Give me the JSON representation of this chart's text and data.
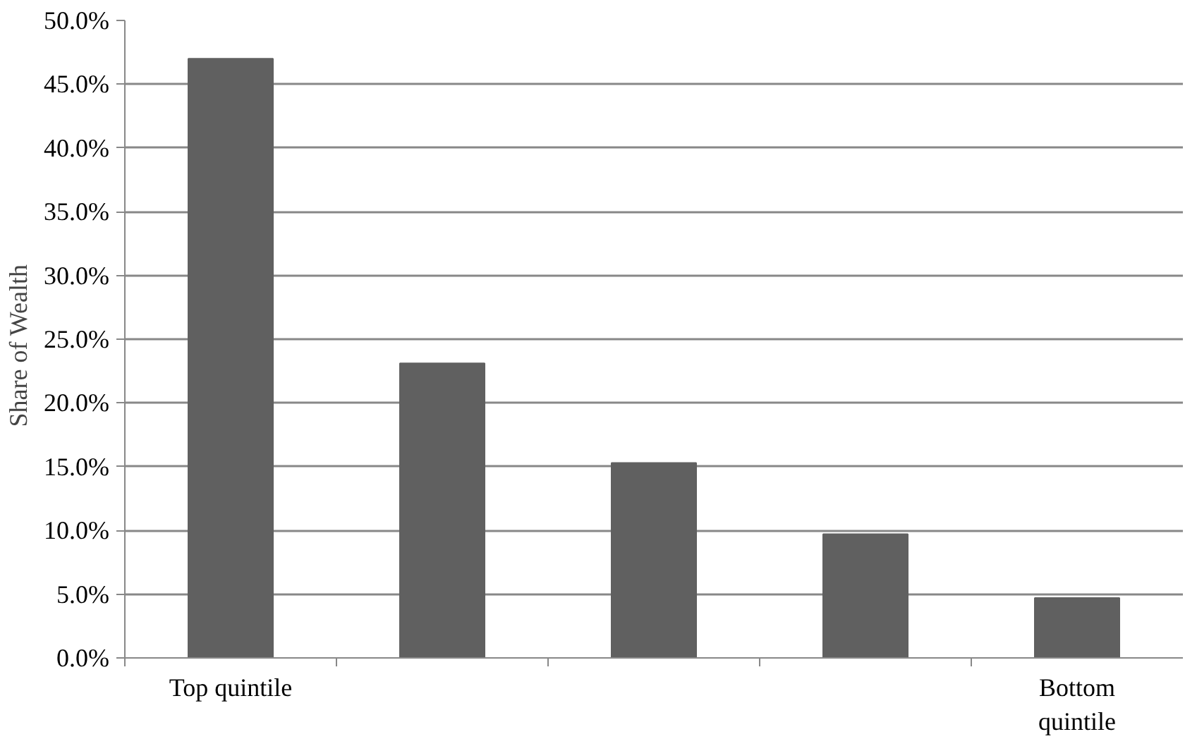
{
  "chart_data": {
    "type": "bar",
    "ylabel": "Share  of  Wealth",
    "categories": [
      "Top quintile",
      null,
      null,
      null,
      "Bottom quintile"
    ],
    "values": [
      47.0,
      23.1,
      15.3,
      9.7,
      4.7
    ],
    "color": "#606060",
    "ylim": [
      0,
      50
    ],
    "yticks": [
      {
        "value": 0,
        "label": "0.0%"
      },
      {
        "value": 5,
        "label": "5.0%"
      },
      {
        "value": 10,
        "label": "10.0%"
      },
      {
        "value": 15,
        "label": "15.0%"
      },
      {
        "value": 20,
        "label": "20.0%"
      },
      {
        "value": 25,
        "label": "25.0%"
      },
      {
        "value": 30,
        "label": "30.0%"
      },
      {
        "value": 35,
        "label": "35.0%"
      },
      {
        "value": 40,
        "label": "40.0%"
      },
      {
        "value": 45,
        "label": "45.0%"
      },
      {
        "value": 50,
        "label": "50.0%"
      }
    ],
    "grid": "y"
  }
}
